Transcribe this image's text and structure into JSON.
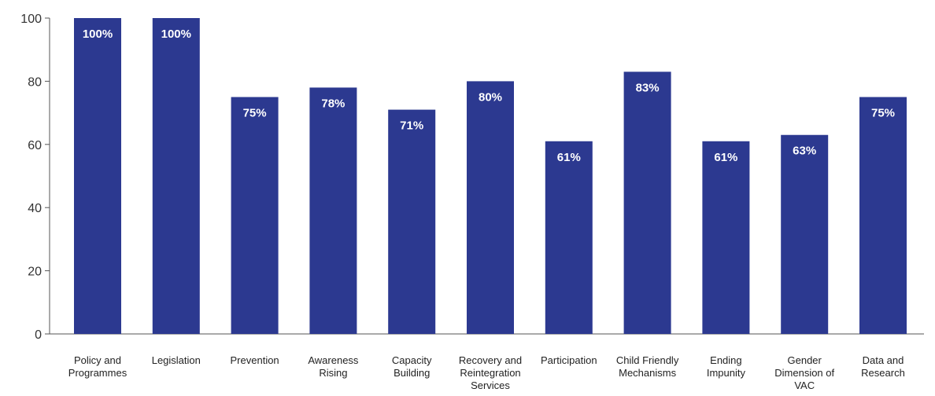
{
  "chart_data": {
    "type": "bar",
    "title": "",
    "xlabel": "",
    "ylabel": "",
    "ylim": [
      0,
      100
    ],
    "yticks": [
      0,
      20,
      40,
      60,
      80,
      100
    ],
    "grid": false,
    "bar_color": "#2c3990",
    "categories": [
      "Policy and\nProgrammes",
      "Legislation",
      "Prevention",
      "Awareness\nRising",
      "Capacity\nBuilding",
      "Recovery and\nReintegration\nServices",
      "Participation",
      "Child Friendly\nMechanisms",
      "Ending\nImpunity",
      "Gender\nDimension of\nVAC",
      "Data and\nResearch"
    ],
    "values": [
      100,
      100,
      75,
      78,
      71,
      80,
      61,
      83,
      61,
      63,
      75
    ],
    "data_labels": [
      "100%",
      "100%",
      "75%",
      "78%",
      "71%",
      "80%",
      "61%",
      "83%",
      "61%",
      "63%",
      "75%"
    ]
  }
}
